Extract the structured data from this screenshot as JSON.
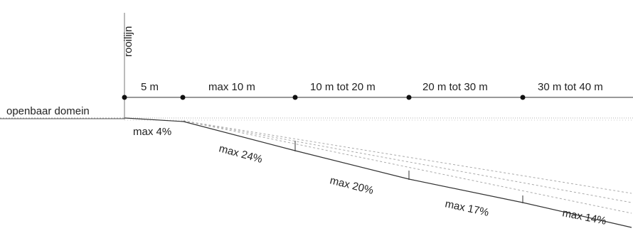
{
  "diagram": {
    "vertical_label": "rooilijn",
    "ground_label": "openbaar domein",
    "segments": [
      "5 m",
      "max 10 m",
      "10 m tot 20 m",
      "20 m tot 30 m",
      "30 m tot 40 m"
    ],
    "slopes": [
      "max 4%",
      "max 24%",
      "max 20%",
      "max 17%",
      "max 14%"
    ],
    "colors": {
      "line": "#333333",
      "hatch": "#aaaaaa",
      "dot": "#111111",
      "text": "#222222"
    }
  }
}
